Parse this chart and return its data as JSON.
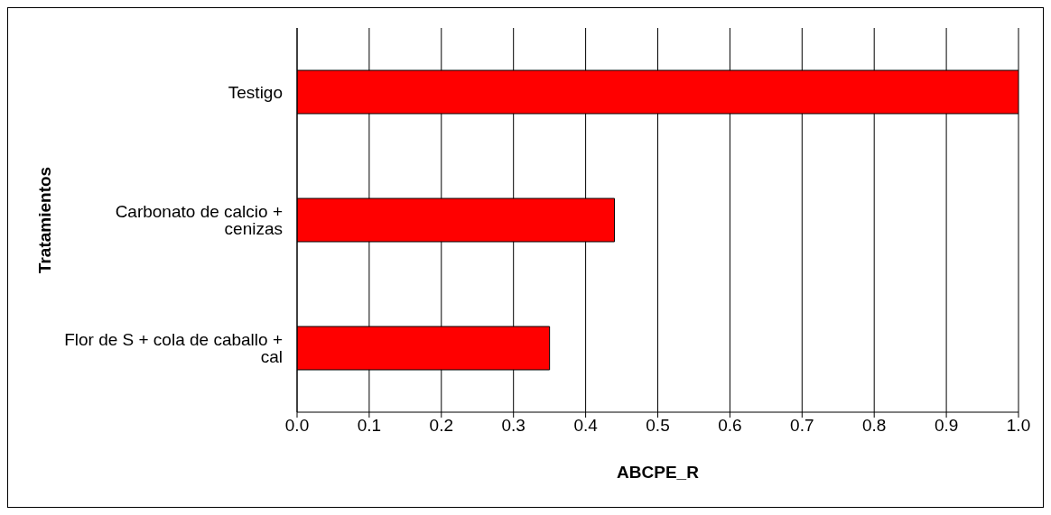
{
  "chart_data": {
    "type": "bar",
    "orientation": "horizontal",
    "xlabel": "ABCPE_R",
    "ylabel": "Tratamientos",
    "categories": [
      "Testigo",
      "Carbonato de calcio + cenizas",
      "Flor de S + cola de caballo + cal"
    ],
    "values": [
      1.0,
      0.44,
      0.35
    ],
    "color": "#ff0000",
    "xlim": [
      0,
      1
    ],
    "xticks": [
      {
        "value": 0,
        "label": "0.0"
      },
      {
        "value": 0.1,
        "label": "0.1"
      },
      {
        "value": 0.2,
        "label": "0.2"
      },
      {
        "value": 0.3,
        "label": "0.3"
      },
      {
        "value": 0.4,
        "label": "0.4"
      },
      {
        "value": 0.5,
        "label": "0.5"
      },
      {
        "value": 0.6,
        "label": "0.6"
      },
      {
        "value": 0.7,
        "label": "0.7"
      },
      {
        "value": 0.8,
        "label": "0.8"
      },
      {
        "value": 0.9,
        "label": "0.9"
      },
      {
        "value": 1,
        "label": "1.0"
      }
    ],
    "grid": "x",
    "legend": false
  }
}
